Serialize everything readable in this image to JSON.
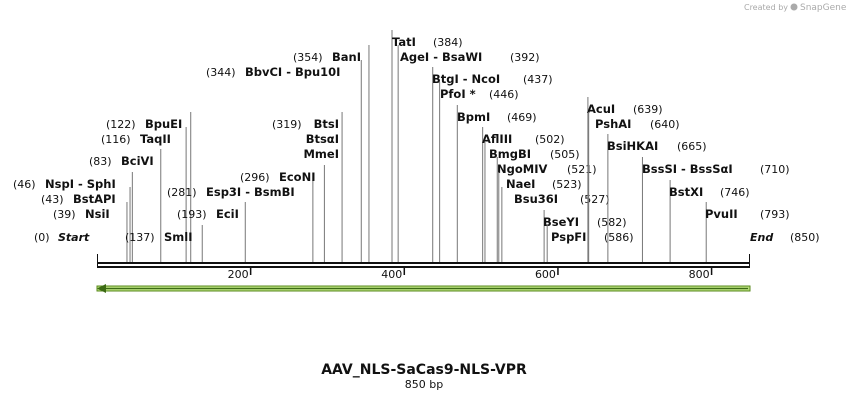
{
  "branding": {
    "created_by": "Created by",
    "product": "SnapGene"
  },
  "title": "AAV_NLS-SaCas9-NLS-VPR",
  "size_label": "850 bp",
  "start": {
    "name": "Start",
    "site": {
      "value": 0,
      "label": "(0)"
    }
  },
  "end": {
    "name": "End",
    "site": {
      "value": 850,
      "label": "(850)"
    }
  },
  "ruler": {
    "length": 850,
    "ticks": [
      200,
      400,
      600,
      800
    ]
  },
  "enzymes": [
    {
      "names": [
        "NsiI"
      ],
      "site": {
        "value": 39,
        "label": "(39)"
      }
    },
    {
      "names": [
        "BstAPI"
      ],
      "site": {
        "value": 43,
        "label": "(43)"
      }
    },
    {
      "names": [
        "NspI  - SphI"
      ],
      "site": {
        "value": 46,
        "label": "(46)"
      }
    },
    {
      "names": [
        "BciVI"
      ],
      "site": {
        "value": 83,
        "label": "(83)"
      }
    },
    {
      "names": [
        "TaqII"
      ],
      "site": {
        "value": 116,
        "label": "(116)"
      }
    },
    {
      "names": [
        "BpuEI"
      ],
      "site": {
        "value": 122,
        "label": "(122)"
      }
    },
    {
      "names": [
        "SmlI"
      ],
      "site": {
        "value": 137,
        "label": "(137)"
      }
    },
    {
      "names": [
        "EciI"
      ],
      "site": {
        "value": 193,
        "label": "(193)"
      }
    },
    {
      "names": [
        "Esp3I  - BsmBI"
      ],
      "site": {
        "value": 281,
        "label": "(281)"
      }
    },
    {
      "names": [
        "EcoNI"
      ],
      "site": {
        "value": 296,
        "label": "(296)"
      }
    },
    {
      "names": [
        "BtsI",
        "BtsαI",
        "MmeI"
      ],
      "site": {
        "value": 319,
        "label": "(319)"
      }
    },
    {
      "names": [
        "BbvCI  - Bpu10I"
      ],
      "site": {
        "value": 344,
        "label": "(344)"
      }
    },
    {
      "names": [
        "BanI"
      ],
      "site": {
        "value": 354,
        "label": "(354)"
      }
    },
    {
      "names": [
        "TatI"
      ],
      "site": {
        "value": 384,
        "label": "(384)"
      }
    },
    {
      "names": [
        "AgeI  - BsaWI"
      ],
      "site": {
        "value": 392,
        "label": "(392)"
      }
    },
    {
      "names": [
        "BtgI  - NcoI"
      ],
      "site": {
        "value": 437,
        "label": "(437)"
      }
    },
    {
      "names": [
        "PfoI *"
      ],
      "site": {
        "value": 446,
        "label": "(446)"
      }
    },
    {
      "names": [
        "BpmI"
      ],
      "site": {
        "value": 469,
        "label": "(469)"
      }
    },
    {
      "names": [
        "AflIII"
      ],
      "site": {
        "value": 502,
        "label": "(502)"
      }
    },
    {
      "names": [
        "BmgBI"
      ],
      "site": {
        "value": 505,
        "label": "(505)"
      }
    },
    {
      "names": [
        "NgoMIV"
      ],
      "site": {
        "value": 521,
        "label": "(521)"
      }
    },
    {
      "names": [
        "NaeI"
      ],
      "site": {
        "value": 523,
        "label": "(523)"
      }
    },
    {
      "names": [
        "Bsu36I"
      ],
      "site": {
        "value": 527,
        "label": "(527)"
      }
    },
    {
      "names": [
        "BseYI"
      ],
      "site": {
        "value": 582,
        "label": "(582)"
      }
    },
    {
      "names": [
        "PspFI"
      ],
      "site": {
        "value": 586,
        "label": "(586)"
      }
    },
    {
      "names": [
        "AcuI"
      ],
      "site": {
        "value": 639,
        "label": "(639)"
      }
    },
    {
      "names": [
        "PshAI"
      ],
      "site": {
        "value": 640,
        "label": "(640)"
      }
    },
    {
      "names": [
        "BsiHKAI"
      ],
      "site": {
        "value": 665,
        "label": "(665)"
      }
    },
    {
      "names": [
        "BssSI  - BssSαI"
      ],
      "site": {
        "value": 710,
        "label": "(710)"
      }
    },
    {
      "names": [
        "BstXI"
      ],
      "site": {
        "value": 746,
        "label": "(746)"
      }
    },
    {
      "names": [
        "PvuII"
      ],
      "site": {
        "value": 793,
        "label": "(793)"
      }
    }
  ]
}
